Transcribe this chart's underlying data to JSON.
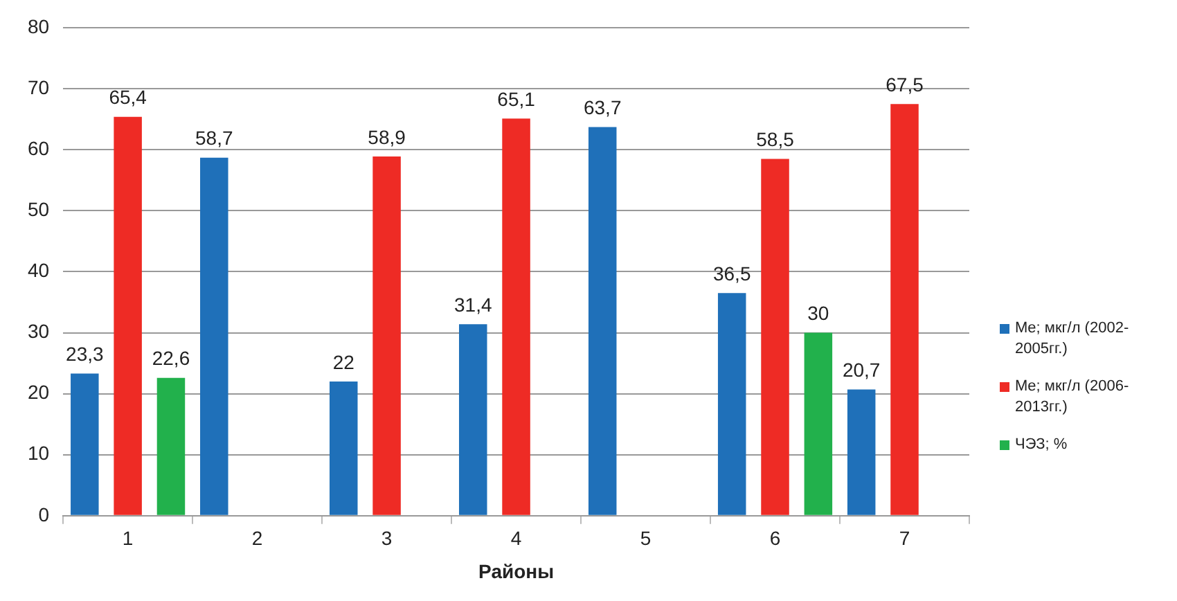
{
  "chart_data": {
    "type": "bar",
    "xlabel": "Районы",
    "categories": [
      "1",
      "2",
      "3",
      "4",
      "5",
      "6",
      "7"
    ],
    "series": [
      {
        "name": "Me; мкг/л (2002-2005гг.)",
        "color": "#1f70b9",
        "values": [
          23.3,
          58.7,
          22,
          31.4,
          63.7,
          36.5,
          20.7
        ],
        "value_labels": [
          "23,3",
          "58,7",
          "22",
          "31,4",
          "63,7",
          "36,5",
          "20,7"
        ]
      },
      {
        "name": "Me; мкг/л (2006-2013гг.)",
        "color": "#ee2b25",
        "values": [
          65.4,
          null,
          58.9,
          65.1,
          null,
          58.5,
          67.5
        ],
        "value_labels": [
          "65,4",
          null,
          "58,9",
          "65,1",
          null,
          "58,5",
          "67,5"
        ]
      },
      {
        "name": "ЧЭЗ; %",
        "color": "#22b14c",
        "values": [
          22.6,
          null,
          null,
          null,
          null,
          30,
          null
        ],
        "value_labels": [
          "22,6",
          null,
          null,
          null,
          null,
          "30",
          null
        ]
      }
    ],
    "ylim": [
      0,
      80
    ],
    "yticks": [
      0,
      10,
      20,
      30,
      40,
      50,
      60,
      70,
      80
    ],
    "grid": "y",
    "legend": "right"
  }
}
